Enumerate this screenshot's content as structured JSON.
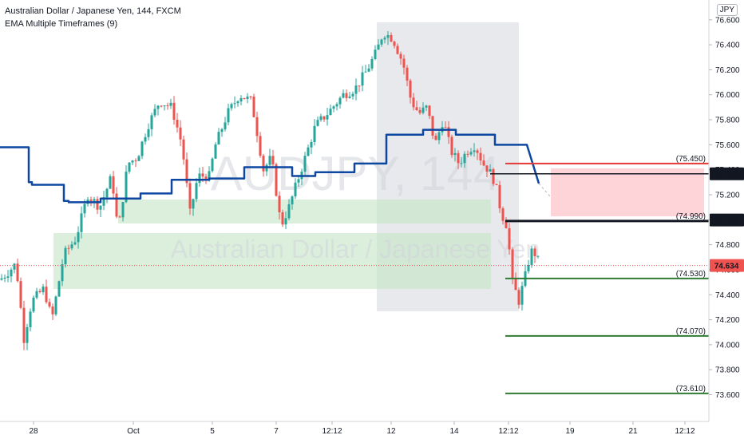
{
  "header": {
    "symbol_title": "Australian Dollar / Japanese Yen, 144, FXCM",
    "indicator_title": "EMA Multiple Timeframes (9)",
    "currency_button": "JPY"
  },
  "watermark": {
    "symbol": "AUDJPY, 144",
    "description": "Australian Dollar / Japanese Yen"
  },
  "colors": {
    "up": "#26a69a",
    "down": "#ef5350",
    "ema": "#0d47a1",
    "green_zone": "#c8e6c9",
    "grey_zone": "#d9dae0",
    "red_zone": "#ffcdd2",
    "target_line": "#2e7d32",
    "stop_line": "#e53935",
    "price_line": "#ef5350"
  },
  "chart_data": {
    "type": "candlestick",
    "y_axis": {
      "min": 73.45,
      "max": 76.72,
      "ticks": [
        "73.600",
        "73.800",
        "74.000",
        "74.200",
        "74.400",
        "74.600",
        "74.800",
        "75.000",
        "75.200",
        "75.400",
        "75.600",
        "75.800",
        "76.000",
        "76.200",
        "76.400",
        "76.600"
      ]
    },
    "x_ticks": [
      "28",
      "Oct",
      "5",
      "7",
      "12:12",
      "12",
      "14",
      "12:12",
      "19",
      "21",
      "12:12"
    ],
    "last_price": "74.634",
    "level_labels": {
      "stop": "(75.450)",
      "entry": "(74.990)",
      "tp1": "(74.530)",
      "tp2": "(74.070)",
      "tp3": "(73.610)"
    },
    "price_tags": {
      "upper": "75.368",
      "lower": "74.998",
      "current": "74.634"
    },
    "ema_steps": [
      {
        "x0": 0,
        "x1": 36,
        "v": 75.58
      },
      {
        "x0": 36,
        "x1": 40,
        "v": 75.3
      },
      {
        "x0": 40,
        "x1": 80,
        "v": 75.28
      },
      {
        "x0": 80,
        "x1": 86,
        "v": 75.15
      },
      {
        "x0": 86,
        "x1": 126,
        "v": 75.14
      },
      {
        "x0": 126,
        "x1": 176,
        "v": 75.17
      },
      {
        "x0": 176,
        "x1": 215,
        "v": 75.21
      },
      {
        "x0": 215,
        "x1": 262,
        "v": 75.32
      },
      {
        "x0": 262,
        "x1": 306,
        "v": 75.33
      },
      {
        "x0": 306,
        "x1": 366,
        "v": 75.42
      },
      {
        "x0": 366,
        "x1": 395,
        "v": 75.35
      },
      {
        "x0": 395,
        "x1": 444,
        "v": 75.38
      },
      {
        "x0": 444,
        "x1": 484,
        "v": 75.45
      },
      {
        "x0": 484,
        "x1": 530,
        "v": 75.68
      },
      {
        "x0": 530,
        "x1": 571,
        "v": 75.72
      },
      {
        "x0": 571,
        "x1": 620,
        "v": 75.68
      },
      {
        "x0": 620,
        "x1": 660,
        "v": 75.6
      }
    ],
    "ema_tail": {
      "x": 675,
      "v": 75.29
    }
  }
}
